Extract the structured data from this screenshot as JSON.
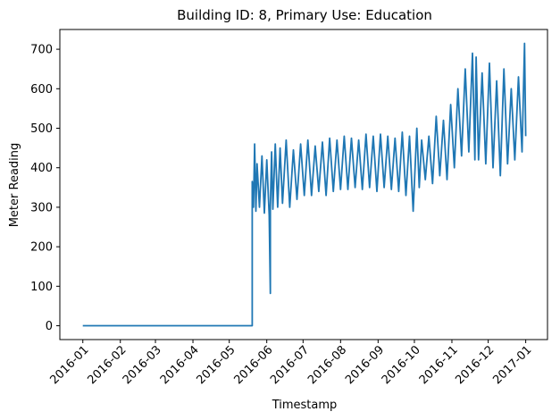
{
  "chart_data": {
    "type": "line",
    "title": "Building ID: 8, Primary Use: Education",
    "xlabel": "Timestamp",
    "ylabel": "Meter Reading",
    "x_tick_labels": [
      "2016-01",
      "2016-02",
      "2016-03",
      "2016-04",
      "2016-05",
      "2016-06",
      "2016-07",
      "2016-08",
      "2016-09",
      "2016-10",
      "2016-11",
      "2016-12",
      "2017-01"
    ],
    "y_ticks": [
      0,
      100,
      200,
      300,
      400,
      500,
      600,
      700
    ],
    "xlim": [
      "2015-12-13",
      "2017-01-19"
    ],
    "ylim": [
      -35,
      750
    ],
    "grid": false,
    "color": "#1f77b4",
    "series": [
      {
        "x": [
          "2016-01-01",
          "2016-05-20",
          "2016-05-20",
          "2016-05-21",
          "2016-05-22",
          "2016-05-23",
          "2016-05-24",
          "2016-05-26",
          "2016-05-28",
          "2016-05-30",
          "2016-06-01",
          "2016-06-03",
          "2016-06-04",
          "2016-06-04",
          "2016-06-05",
          "2016-06-06",
          "2016-06-08",
          "2016-06-10",
          "2016-06-12",
          "2016-06-14",
          "2016-06-17",
          "2016-06-20",
          "2016-06-23",
          "2016-06-26",
          "2016-06-29",
          "2016-07-02",
          "2016-07-05",
          "2016-07-08",
          "2016-07-11",
          "2016-07-14",
          "2016-07-17",
          "2016-07-20",
          "2016-07-23",
          "2016-07-26",
          "2016-07-29",
          "2016-08-01",
          "2016-08-04",
          "2016-08-07",
          "2016-08-10",
          "2016-08-13",
          "2016-08-16",
          "2016-08-19",
          "2016-08-22",
          "2016-08-25",
          "2016-08-28",
          "2016-08-31",
          "2016-09-03",
          "2016-09-06",
          "2016-09-09",
          "2016-09-12",
          "2016-09-15",
          "2016-09-18",
          "2016-09-21",
          "2016-09-24",
          "2016-09-27",
          "2016-09-30",
          "2016-10-03",
          "2016-10-05",
          "2016-10-07",
          "2016-10-10",
          "2016-10-13",
          "2016-10-16",
          "2016-10-19",
          "2016-10-22",
          "2016-10-25",
          "2016-10-28",
          "2016-10-31",
          "2016-11-03",
          "2016-11-06",
          "2016-11-09",
          "2016-11-12",
          "2016-11-15",
          "2016-11-18",
          "2016-11-20",
          "2016-11-21",
          "2016-11-23",
          "2016-11-26",
          "2016-11-29",
          "2016-12-02",
          "2016-12-05",
          "2016-12-08",
          "2016-12-11",
          "2016-12-14",
          "2016-12-17",
          "2016-12-20",
          "2016-12-23",
          "2016-12-26",
          "2016-12-29",
          "2016-12-31",
          "2017-01-01"
        ],
        "values": [
          0,
          0,
          365,
          300,
          460,
          290,
          410,
          300,
          430,
          285,
          420,
          280,
          82,
          300,
          440,
          295,
          460,
          300,
          450,
          310,
          470,
          300,
          445,
          320,
          460,
          330,
          470,
          330,
          455,
          340,
          465,
          330,
          475,
          340,
          470,
          345,
          480,
          345,
          475,
          350,
          470,
          345,
          485,
          350,
          480,
          340,
          485,
          350,
          480,
          345,
          475,
          340,
          490,
          330,
          480,
          290,
          500,
          350,
          470,
          370,
          480,
          360,
          530,
          380,
          520,
          370,
          560,
          400,
          600,
          430,
          650,
          440,
          690,
          420,
          680,
          420,
          640,
          410,
          665,
          400,
          620,
          380,
          650,
          410,
          600,
          420,
          630,
          440,
          715,
          480
        ]
      }
    ]
  }
}
